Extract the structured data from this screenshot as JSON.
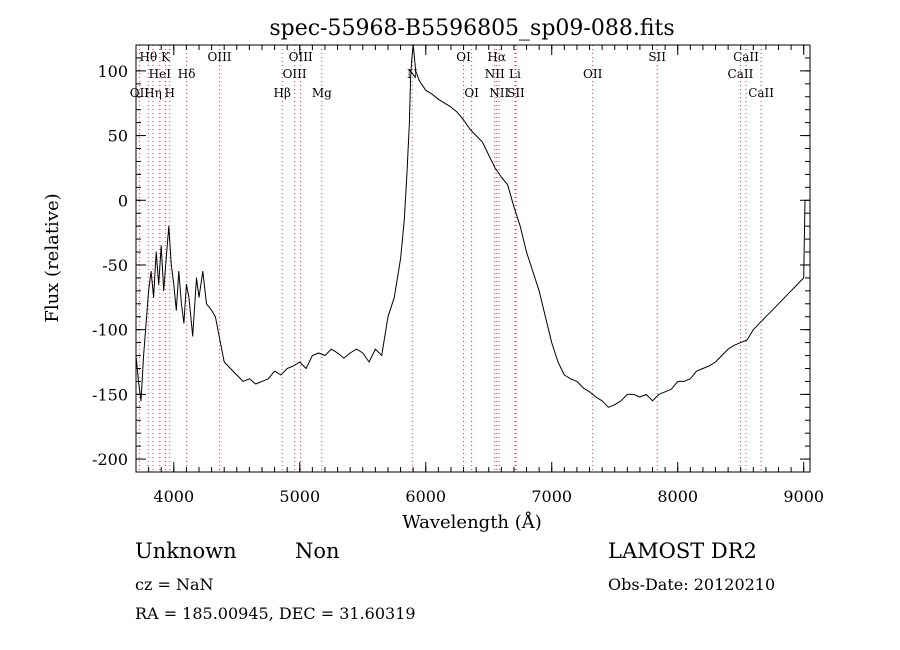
{
  "chart_data": {
    "type": "line",
    "title": "spec-55968-B5596805_sp09-088.fits",
    "xlabel": "Wavelength (Å)",
    "ylabel": "Flux (relative)",
    "xlim": [
      3700,
      9050
    ],
    "ylim": [
      -210,
      120
    ],
    "x_ticks": [
      4000,
      5000,
      6000,
      7000,
      8000,
      9000
    ],
    "y_ticks": [
      100,
      50,
      0,
      -50,
      -100,
      -150,
      -200
    ],
    "grid": false,
    "series": [
      {
        "name": "",
        "color": "#000000",
        "points": [
          [
            3700,
            -120
          ],
          [
            3720,
            -140
          ],
          [
            3740,
            -155
          ],
          [
            3760,
            -120
          ],
          [
            3780,
            -95
          ],
          [
            3800,
            -70
          ],
          [
            3820,
            -55
          ],
          [
            3840,
            -75
          ],
          [
            3860,
            -40
          ],
          [
            3880,
            -65
          ],
          [
            3900,
            -35
          ],
          [
            3920,
            -70
          ],
          [
            3940,
            -45
          ],
          [
            3960,
            -20
          ],
          [
            3980,
            -50
          ],
          [
            4000,
            -65
          ],
          [
            4020,
            -85
          ],
          [
            4040,
            -55
          ],
          [
            4060,
            -80
          ],
          [
            4080,
            -95
          ],
          [
            4100,
            -65
          ],
          [
            4120,
            -75
          ],
          [
            4150,
            -105
          ],
          [
            4180,
            -60
          ],
          [
            4200,
            -75
          ],
          [
            4230,
            -55
          ],
          [
            4260,
            -80
          ],
          [
            4300,
            -85
          ],
          [
            4330,
            -90
          ],
          [
            4350,
            -100
          ],
          [
            4380,
            -115
          ],
          [
            4400,
            -125
          ],
          [
            4450,
            -130
          ],
          [
            4500,
            -135
          ],
          [
            4550,
            -140
          ],
          [
            4600,
            -138
          ],
          [
            4650,
            -142
          ],
          [
            4700,
            -140
          ],
          [
            4750,
            -138
          ],
          [
            4800,
            -132
          ],
          [
            4850,
            -135
          ],
          [
            4900,
            -130
          ],
          [
            4950,
            -128
          ],
          [
            5000,
            -125
          ],
          [
            5050,
            -130
          ],
          [
            5100,
            -120
          ],
          [
            5150,
            -118
          ],
          [
            5200,
            -120
          ],
          [
            5250,
            -115
          ],
          [
            5300,
            -118
          ],
          [
            5350,
            -122
          ],
          [
            5400,
            -118
          ],
          [
            5450,
            -115
          ],
          [
            5500,
            -118
          ],
          [
            5550,
            -125
          ],
          [
            5600,
            -115
          ],
          [
            5650,
            -120
          ],
          [
            5700,
            -90
          ],
          [
            5750,
            -75
          ],
          [
            5800,
            -45
          ],
          [
            5830,
            -15
          ],
          [
            5850,
            20
          ],
          [
            5870,
            60
          ],
          [
            5880,
            95
          ],
          [
            5890,
            110
          ],
          [
            5900,
            120
          ],
          [
            5920,
            100
          ],
          [
            5950,
            92
          ],
          [
            6000,
            85
          ],
          [
            6050,
            82
          ],
          [
            6100,
            78
          ],
          [
            6150,
            75
          ],
          [
            6200,
            72
          ],
          [
            6250,
            68
          ],
          [
            6300,
            62
          ],
          [
            6350,
            55
          ],
          [
            6400,
            50
          ],
          [
            6450,
            45
          ],
          [
            6500,
            35
          ],
          [
            6550,
            25
          ],
          [
            6600,
            18
          ],
          [
            6650,
            12
          ],
          [
            6700,
            -5
          ],
          [
            6750,
            -20
          ],
          [
            6800,
            -40
          ],
          [
            6850,
            -55
          ],
          [
            6900,
            -70
          ],
          [
            6950,
            -90
          ],
          [
            7000,
            -110
          ],
          [
            7050,
            -125
          ],
          [
            7100,
            -135
          ],
          [
            7150,
            -138
          ],
          [
            7200,
            -140
          ],
          [
            7250,
            -145
          ],
          [
            7300,
            -148
          ],
          [
            7350,
            -152
          ],
          [
            7400,
            -155
          ],
          [
            7450,
            -160
          ],
          [
            7500,
            -158
          ],
          [
            7550,
            -155
          ],
          [
            7600,
            -150
          ],
          [
            7650,
            -150
          ],
          [
            7700,
            -152
          ],
          [
            7750,
            -150
          ],
          [
            7800,
            -155
          ],
          [
            7850,
            -150
          ],
          [
            7900,
            -148
          ],
          [
            7950,
            -146
          ],
          [
            8000,
            -140
          ],
          [
            8050,
            -140
          ],
          [
            8100,
            -138
          ],
          [
            8150,
            -132
          ],
          [
            8200,
            -130
          ],
          [
            8250,
            -128
          ],
          [
            8300,
            -125
          ],
          [
            8350,
            -120
          ],
          [
            8400,
            -115
          ],
          [
            8450,
            -112
          ],
          [
            8500,
            -110
          ],
          [
            8550,
            -108
          ],
          [
            8600,
            -100
          ],
          [
            8650,
            -95
          ],
          [
            8700,
            -90
          ],
          [
            8750,
            -85
          ],
          [
            8800,
            -80
          ],
          [
            8850,
            -75
          ],
          [
            8900,
            -70
          ],
          [
            8950,
            -65
          ],
          [
            9000,
            -60
          ],
          [
            9010,
            0
          ]
        ]
      }
    ],
    "lines": [
      {
        "label": "Hθ",
        "x": 3798,
        "row": 0
      },
      {
        "label": "K",
        "x": 3934,
        "row": 0
      },
      {
        "label": "OIII",
        "x": 4363,
        "row": 0
      },
      {
        "label": "OIII",
        "x": 5007,
        "row": 0
      },
      {
        "label": "OI",
        "x": 6300,
        "row": 0
      },
      {
        "label": "Hα",
        "x": 6563,
        "row": 0
      },
      {
        "label": "SII",
        "x": 7837,
        "row": 0
      },
      {
        "label": "CaII",
        "x": 8542,
        "row": 0
      },
      {
        "label": "HeI",
        "x": 3889,
        "row": 1
      },
      {
        "label": "Hδ",
        "x": 4102,
        "row": 1
      },
      {
        "label": "OIII",
        "x": 4959,
        "row": 1
      },
      {
        "label": "N",
        "x": 5893,
        "row": 1
      },
      {
        "label": "NII",
        "x": 6548,
        "row": 1
      },
      {
        "label": "Li",
        "x": 6708,
        "row": 1
      },
      {
        "label": "OII",
        "x": 7325,
        "row": 1
      },
      {
        "label": "CaII",
        "x": 8498,
        "row": 1
      },
      {
        "label": "OII",
        "x": 3727,
        "row": 2
      },
      {
        "label": "Hη",
        "x": 3835,
        "row": 2
      },
      {
        "label": "H",
        "x": 3968,
        "row": 2
      },
      {
        "label": "Hβ",
        "x": 4861,
        "row": 2
      },
      {
        "label": "Mg",
        "x": 5175,
        "row": 2
      },
      {
        "label": "OI",
        "x": 6364,
        "row": 2
      },
      {
        "label": "NII",
        "x": 6583,
        "row": 2
      },
      {
        "label": "SII",
        "x": 6716,
        "row": 2
      },
      {
        "label": "CaII",
        "x": 8662,
        "row": 2
      }
    ]
  },
  "info": {
    "class": "Unknown",
    "subclass": "Non",
    "survey": "LAMOST DR2",
    "cz": "cz = NaN",
    "obs_date": "Obs-Date: 20120210",
    "coords": "RA = 185.00945, DEC =  31.60319"
  }
}
